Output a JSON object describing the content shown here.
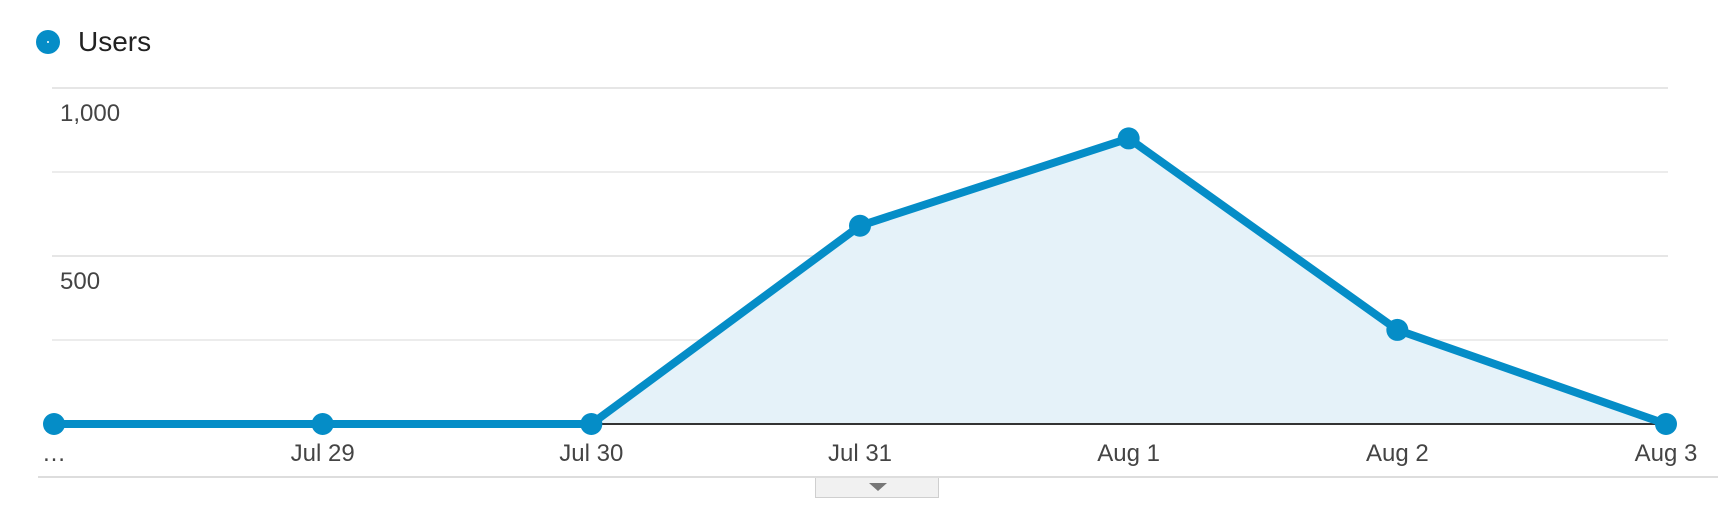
{
  "legend": {
    "label": "Users",
    "icon": "circle-marker-icon"
  },
  "colors": {
    "series": "#058dc7",
    "fill": "#e5f2f9",
    "grid": "#e6e6e6",
    "baseline": "#333333",
    "text": "#444444"
  },
  "chart_data": {
    "type": "area",
    "categories": [
      "…",
      "Jul 29",
      "Jul 30",
      "Jul 31",
      "Aug 1",
      "Aug 2",
      "Aug 3"
    ],
    "series": [
      {
        "name": "Users",
        "values": [
          0,
          0,
          0,
          590,
          850,
          280,
          0
        ]
      }
    ],
    "yticks": [
      {
        "value": 1000,
        "label": "1,000"
      },
      {
        "value": 500,
        "label": "500"
      }
    ],
    "ylim": [
      0,
      1000
    ],
    "grid": true,
    "legend_position": "top-left"
  },
  "toggle": {
    "icon": "chevron-down-icon"
  }
}
